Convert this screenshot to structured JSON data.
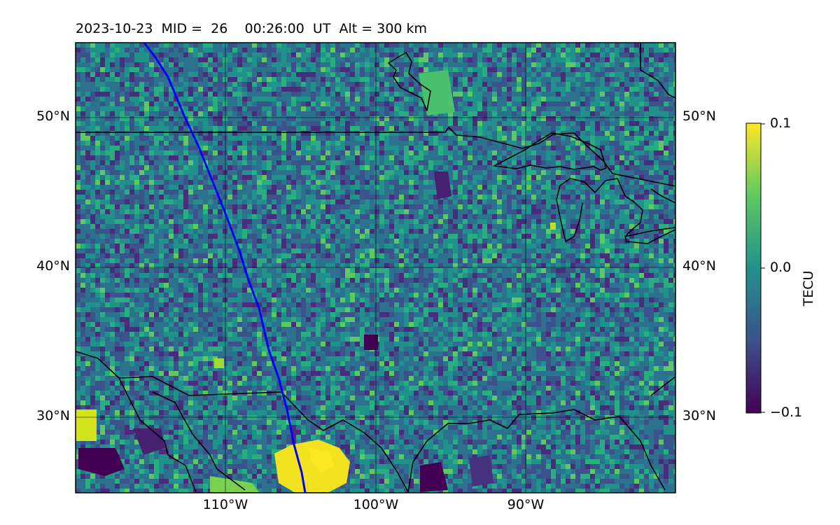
{
  "title": "2023-10-23  MID =  26    00:26:00  UT  Alt = 300 km",
  "map": {
    "lon_range": [
      -120,
      -80
    ],
    "lat_range": [
      25,
      55
    ],
    "lat_gridlines": [
      30,
      40,
      50
    ],
    "lon_gridlines": [
      -110,
      -100,
      -90
    ],
    "lat_labels": [
      "30°N",
      "40°N",
      "50°N"
    ],
    "lon_labels": [
      "110°W",
      "100°W",
      "90°W"
    ],
    "track_color": "#0000ff",
    "coastline_color": "#000000"
  },
  "colorbar": {
    "label": "TECU",
    "colormap": "viridis",
    "min": -0.1,
    "max": 0.1,
    "tick_labels": [
      "−0.1",
      "0.0",
      "0.1"
    ]
  }
}
